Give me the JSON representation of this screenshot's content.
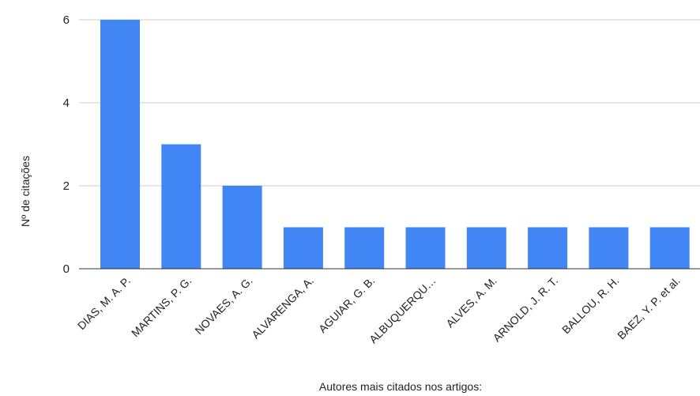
{
  "chart_data": {
    "type": "bar",
    "title": "",
    "xlabel": "Autores mais citados nos artigos:",
    "ylabel": "Nº de citações",
    "categories": [
      "DIAS, M. A. P.",
      "MARTINS, P. G.",
      "NOVAES, A. G.",
      "ALVARENGA, A.",
      "AGUIAR, G. B.",
      "ALBUQUERQU…",
      "ALVES, A. M.",
      "ARNOLD, J. R. T.",
      "BALLOU, R. H.",
      "BAEZ, Y. P. et al."
    ],
    "values": [
      6,
      3,
      2,
      1,
      1,
      1,
      1,
      1,
      1,
      1
    ],
    "ylim": [
      0,
      6
    ],
    "yticks": [
      "0",
      "2",
      "4",
      "6"
    ],
    "grid": true,
    "legend": "none",
    "bar_color": "#4285f4",
    "grid_color": "#cccccc",
    "baseline_color": "#333333"
  }
}
